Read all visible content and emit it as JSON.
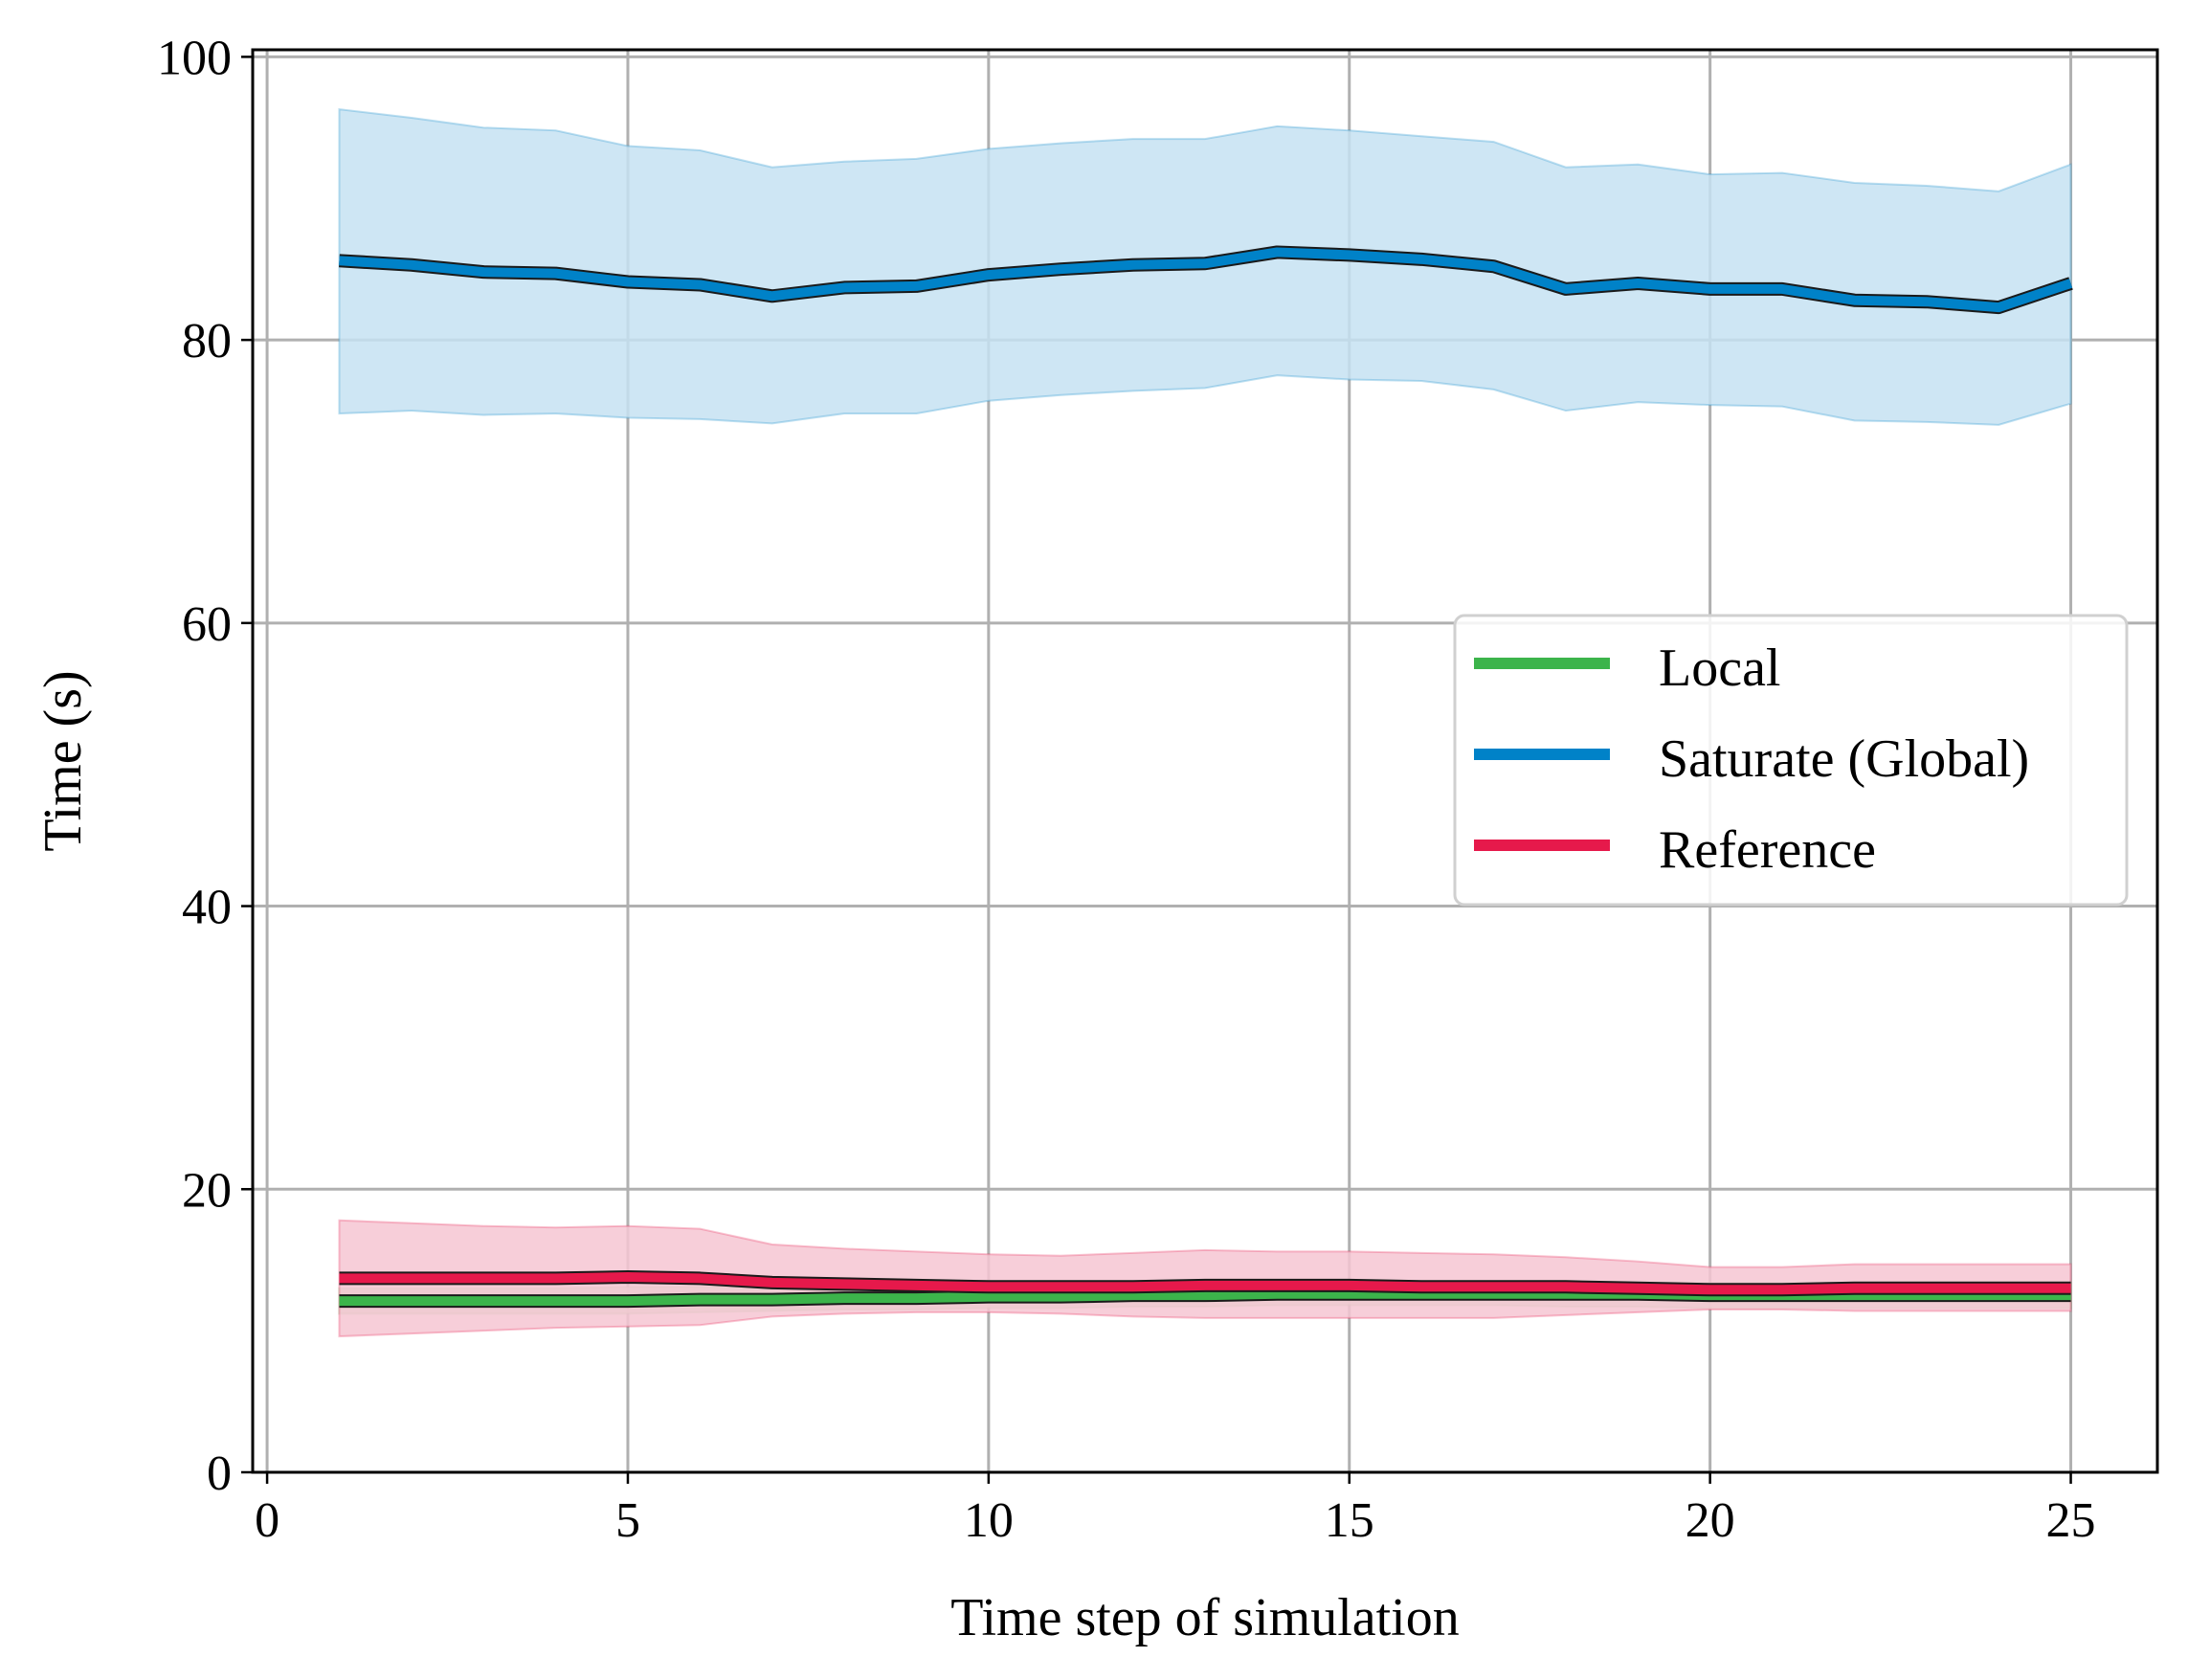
{
  "chart_data": {
    "type": "line",
    "title": "",
    "xlabel": "Time step of simulation",
    "ylabel": "Time (s)",
    "xlim": [
      -0.2,
      26.2
    ],
    "ylim": [
      0,
      100.5
    ],
    "xticks": [
      0,
      5,
      10,
      15,
      20,
      25
    ],
    "yticks": [
      0,
      20,
      40,
      60,
      80,
      100
    ],
    "grid": true,
    "legend_position": "center-right",
    "x": [
      1,
      2,
      3,
      4,
      5,
      6,
      7,
      8,
      9,
      10,
      11,
      12,
      13,
      14,
      15,
      16,
      17,
      18,
      19,
      20,
      21,
      22,
      23,
      24,
      25
    ],
    "series": [
      {
        "name": "Local",
        "color": "#3cb44b",
        "band_color": "#c9e6c4",
        "values": [
          12.1,
          12.1,
          12.1,
          12.1,
          12.1,
          12.2,
          12.2,
          12.3,
          12.3,
          12.4,
          12.4,
          12.5,
          12.5,
          12.6,
          12.6,
          12.6,
          12.6,
          12.6,
          12.6,
          12.5,
          12.5,
          12.5,
          12.5,
          12.5,
          12.5
        ],
        "lower": [
          11.2,
          11.2,
          11.2,
          11.2,
          11.2,
          11.3,
          11.4,
          11.5,
          11.5,
          11.6,
          11.6,
          11.7,
          11.7,
          11.8,
          11.8,
          11.8,
          11.8,
          11.7,
          11.7,
          11.6,
          11.6,
          11.6,
          11.6,
          11.6,
          11.6
        ],
        "upper": [
          13.0,
          13.0,
          13.0,
          13.0,
          13.1,
          13.1,
          13.1,
          13.1,
          13.2,
          13.2,
          13.2,
          13.3,
          13.3,
          13.4,
          13.4,
          13.4,
          13.4,
          13.4,
          13.4,
          13.4,
          13.4,
          13.4,
          13.4,
          13.4,
          13.4
        ]
      },
      {
        "name": "Saturate (Global)",
        "color": "#0082c8",
        "band_color": "#c6e2f2",
        "values": [
          85.6,
          85.3,
          84.8,
          84.7,
          84.1,
          83.9,
          83.1,
          83.7,
          83.8,
          84.6,
          85.0,
          85.3,
          85.4,
          86.2,
          86.0,
          85.7,
          85.2,
          83.6,
          84.0,
          83.6,
          83.6,
          82.8,
          82.7,
          82.3,
          84.0
        ],
        "lower": [
          74.8,
          75.0,
          74.7,
          74.8,
          74.5,
          74.4,
          74.1,
          74.8,
          74.8,
          75.7,
          76.1,
          76.4,
          76.6,
          77.5,
          77.2,
          77.1,
          76.5,
          75.0,
          75.6,
          75.4,
          75.3,
          74.3,
          74.2,
          74.0,
          75.5
        ],
        "upper": [
          96.3,
          95.7,
          95.0,
          94.8,
          93.7,
          93.4,
          92.2,
          92.6,
          92.8,
          93.5,
          93.9,
          94.2,
          94.2,
          95.1,
          94.8,
          94.4,
          94.0,
          92.2,
          92.4,
          91.7,
          91.8,
          91.1,
          90.9,
          90.5,
          92.4
        ]
      },
      {
        "name": "Reference",
        "color": "#e6194b",
        "band_color": "#f6c6d2",
        "values": [
          13.7,
          13.7,
          13.7,
          13.7,
          13.8,
          13.7,
          13.4,
          13.3,
          13.2,
          13.1,
          13.1,
          13.1,
          13.2,
          13.2,
          13.2,
          13.1,
          13.1,
          13.1,
          13.0,
          12.9,
          12.9,
          13.0,
          13.0,
          13.0,
          13.0
        ],
        "lower": [
          9.6,
          9.8,
          10.0,
          10.2,
          10.3,
          10.4,
          11.0,
          11.2,
          11.3,
          11.3,
          11.2,
          11.0,
          10.9,
          10.9,
          10.9,
          10.9,
          10.9,
          11.1,
          11.3,
          11.5,
          11.5,
          11.4,
          11.4,
          11.4,
          11.4
        ],
        "upper": [
          17.8,
          17.6,
          17.4,
          17.3,
          17.4,
          17.2,
          16.1,
          15.8,
          15.6,
          15.4,
          15.3,
          15.5,
          15.7,
          15.6,
          15.6,
          15.5,
          15.4,
          15.2,
          14.9,
          14.5,
          14.5,
          14.7,
          14.7,
          14.7,
          14.7
        ]
      }
    ]
  }
}
